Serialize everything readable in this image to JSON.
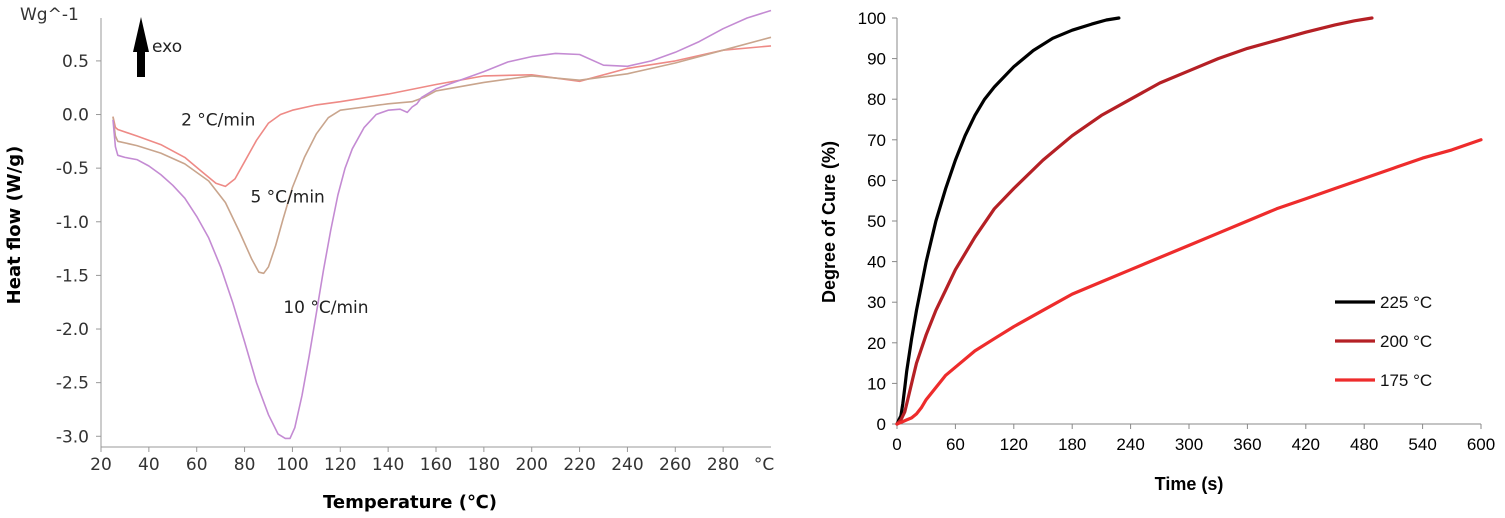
{
  "chart_data": [
    {
      "type": "line",
      "title": "",
      "xlabel": "Temperature (℃)",
      "ylabel": "Heat flow (W/g)",
      "unit_label": "Wg^-1",
      "x_unit_tick": "°C",
      "xlim": [
        20,
        300
      ],
      "ylim": [
        -3.1,
        0.9
      ],
      "xticks": [
        "20",
        "40",
        "60",
        "80",
        "100",
        "120",
        "140",
        "160",
        "180",
        "200",
        "220",
        "240",
        "260",
        "280"
      ],
      "yticks": [
        "0.5",
        "0.0",
        "-0.5",
        "-1.0",
        "-1.5",
        "-2.0",
        "-2.5",
        "-3.0"
      ],
      "yticks_values": [
        0.5,
        0.0,
        -0.5,
        -1.0,
        -1.5,
        -2.0,
        -2.5,
        -3.0
      ],
      "exo_label": "exo",
      "grid": false,
      "series": [
        {
          "name": "2 °C/min",
          "color": "#ee8a86",
          "x": [
            25,
            26,
            27,
            35,
            45,
            55,
            62,
            68,
            72,
            76,
            80,
            85,
            90,
            95,
            100,
            110,
            120,
            140,
            160,
            180,
            200,
            220,
            240,
            260,
            280,
            300
          ],
          "y": [
            -0.02,
            -0.12,
            -0.14,
            -0.2,
            -0.28,
            -0.4,
            -0.53,
            -0.64,
            -0.67,
            -0.6,
            -0.44,
            -0.24,
            -0.08,
            0.0,
            0.04,
            0.09,
            0.12,
            0.19,
            0.28,
            0.36,
            0.37,
            0.31,
            0.43,
            0.5,
            0.6,
            0.64
          ]
        },
        {
          "name": "5 °C/min",
          "color": "#c9a58d",
          "x": [
            25,
            26,
            27,
            35,
            45,
            55,
            65,
            72,
            78,
            83,
            86,
            88,
            90,
            93,
            96,
            100,
            105,
            110,
            115,
            120,
            130,
            140,
            150,
            155,
            160,
            180,
            200,
            220,
            240,
            260,
            280,
            300
          ],
          "y": [
            -0.02,
            -0.2,
            -0.25,
            -0.29,
            -0.36,
            -0.46,
            -0.62,
            -0.82,
            -1.1,
            -1.35,
            -1.47,
            -1.48,
            -1.42,
            -1.22,
            -0.98,
            -0.68,
            -0.4,
            -0.18,
            -0.03,
            0.04,
            0.07,
            0.1,
            0.12,
            0.16,
            0.22,
            0.3,
            0.36,
            0.32,
            0.38,
            0.48,
            0.6,
            0.72
          ]
        },
        {
          "name": "10 °C/min",
          "color": "#c48bd3",
          "x": [
            25,
            26,
            27,
            30,
            35,
            40,
            45,
            50,
            55,
            60,
            65,
            70,
            75,
            80,
            85,
            90,
            94,
            97,
            99,
            101,
            104,
            107,
            110,
            113,
            116,
            119,
            122,
            125,
            130,
            135,
            140,
            145,
            148,
            150,
            152,
            154,
            160,
            170,
            180,
            190,
            200,
            210,
            220,
            230,
            240,
            250,
            260,
            270,
            280,
            290,
            300
          ],
          "y": [
            -0.05,
            -0.3,
            -0.38,
            -0.4,
            -0.42,
            -0.48,
            -0.56,
            -0.66,
            -0.78,
            -0.95,
            -1.15,
            -1.42,
            -1.75,
            -2.12,
            -2.5,
            -2.8,
            -2.98,
            -3.02,
            -3.02,
            -2.92,
            -2.62,
            -2.25,
            -1.85,
            -1.45,
            -1.08,
            -0.75,
            -0.5,
            -0.32,
            -0.12,
            0.0,
            0.04,
            0.05,
            0.02,
            0.07,
            0.1,
            0.16,
            0.24,
            0.32,
            0.4,
            0.49,
            0.54,
            0.57,
            0.56,
            0.46,
            0.45,
            0.5,
            0.58,
            0.68,
            0.8,
            0.9,
            0.97
          ]
        }
      ],
      "annotations": [
        {
          "text": "2 °C/min",
          "x": 69,
          "y": -0.1
        },
        {
          "text": "5 °C/min",
          "x": 98,
          "y": -0.82
        },
        {
          "text": "10 °C/min",
          "x": 114,
          "y": -1.85
        }
      ]
    },
    {
      "type": "line",
      "title": "",
      "xlabel": "Time (s)",
      "ylabel": "Degree of Cure (%)",
      "xlim": [
        0,
        600
      ],
      "ylim": [
        0,
        100
      ],
      "xticks": [
        0,
        60,
        120,
        180,
        240,
        300,
        360,
        420,
        480,
        540,
        600
      ],
      "yticks": [
        0,
        10,
        20,
        30,
        40,
        50,
        60,
        70,
        80,
        90,
        100
      ],
      "grid": false,
      "legend_position": "bottom-right",
      "series": [
        {
          "name": "225 °C",
          "color": "#000000",
          "x": [
            0,
            2,
            4,
            6,
            8,
            10,
            15,
            20,
            30,
            40,
            50,
            60,
            70,
            80,
            90,
            100,
            120,
            140,
            160,
            180,
            200,
            215,
            228
          ],
          "y": [
            0,
            1,
            2,
            5,
            9,
            13,
            21,
            28,
            40,
            50,
            58,
            65,
            71,
            76,
            80,
            83,
            88,
            92,
            95,
            97,
            98.5,
            99.5,
            100
          ]
        },
        {
          "name": "200 °C",
          "color": "#b52025",
          "x": [
            0,
            4,
            8,
            12,
            16,
            20,
            30,
            40,
            50,
            60,
            80,
            100,
            120,
            150,
            180,
            210,
            240,
            270,
            300,
            330,
            360,
            390,
            420,
            450,
            470,
            488
          ],
          "y": [
            0,
            1,
            3,
            7,
            11,
            15,
            22,
            28,
            33,
            38,
            46,
            53,
            58,
            65,
            71,
            76,
            80,
            84,
            87,
            90,
            92.5,
            94.5,
            96.5,
            98.3,
            99.3,
            100
          ]
        },
        {
          "name": "175 °C",
          "color": "#ee2c2c",
          "x": [
            0,
            5,
            10,
            15,
            20,
            25,
            30,
            40,
            50,
            60,
            80,
            100,
            120,
            150,
            180,
            210,
            240,
            270,
            300,
            330,
            360,
            390,
            420,
            450,
            480,
            510,
            540,
            570,
            600
          ],
          "y": [
            0,
            0.5,
            1,
            1.5,
            2.5,
            4,
            6,
            9,
            12,
            14,
            18,
            21,
            24,
            28,
            32,
            35,
            38,
            41,
            44,
            47,
            50,
            53,
            55.5,
            58,
            60.5,
            63,
            65.5,
            67.5,
            70
          ]
        }
      ]
    }
  ]
}
